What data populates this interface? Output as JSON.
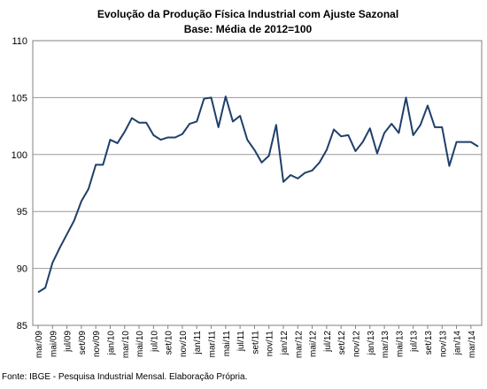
{
  "chart_data": {
    "type": "line",
    "title": "Evolução da Produção Física Industrial com Ajuste Sazonal",
    "subtitle": "Base: Média de 2012=100",
    "ylim": [
      85,
      110
    ],
    "yticks": [
      "85",
      "90",
      "95",
      "100",
      "105",
      "110"
    ],
    "xticks": [
      "mar/09",
      "mai/09",
      "jul/09",
      "set/09",
      "nov/09",
      "jan/10",
      "mar/10",
      "mai/10",
      "jul/10",
      "set/10",
      "nov/10",
      "jan/11",
      "mar/11",
      "mai/11",
      "jul/11",
      "set/11",
      "nov/11",
      "jan/12",
      "mar/12",
      "mai/12",
      "jul/12",
      "set/12",
      "nov/12",
      "jan/13",
      "mar/13",
      "mai/13",
      "jul/13",
      "set/13",
      "nov/13",
      "jan/14",
      "mar/14"
    ],
    "grid": "horizontal",
    "legend": "none",
    "line_color": "#1f3f6a",
    "x": [
      "mar/09",
      "abr/09",
      "mai/09",
      "jun/09",
      "jul/09",
      "ago/09",
      "set/09",
      "out/09",
      "nov/09",
      "dez/09",
      "jan/10",
      "fev/10",
      "mar/10",
      "abr/10",
      "mai/10",
      "jun/10",
      "jul/10",
      "ago/10",
      "set/10",
      "out/10",
      "nov/10",
      "dez/10",
      "jan/11",
      "fev/11",
      "mar/11",
      "abr/11",
      "mai/11",
      "jun/11",
      "jul/11",
      "ago/11",
      "set/11",
      "out/11",
      "nov/11",
      "dez/11",
      "jan/12",
      "fev/12",
      "mar/12",
      "abr/12",
      "mai/12",
      "jun/12",
      "jul/12",
      "ago/12",
      "set/12",
      "out/12",
      "nov/12",
      "dez/12",
      "jan/13",
      "fev/13",
      "mar/13",
      "abr/13",
      "mai/13",
      "jun/13",
      "jul/13",
      "ago/13",
      "set/13",
      "out/13",
      "nov/13",
      "dez/13",
      "jan/14",
      "fev/14",
      "mar/14",
      "abr/14"
    ],
    "values": [
      87.9,
      88.3,
      90.5,
      91.8,
      93.0,
      94.2,
      95.9,
      97.0,
      99.1,
      99.1,
      101.3,
      101.0,
      102.0,
      103.2,
      102.8,
      102.8,
      101.7,
      101.3,
      101.5,
      101.5,
      101.8,
      102.7,
      102.9,
      104.9,
      105.0,
      102.4,
      105.1,
      102.9,
      103.4,
      101.3,
      100.4,
      99.3,
      99.9,
      102.6,
      97.6,
      98.2,
      97.9,
      98.4,
      98.6,
      99.3,
      100.4,
      102.2,
      101.6,
      101.7,
      100.3,
      101.1,
      102.3,
      100.1,
      101.9,
      102.7,
      101.9,
      105.0,
      101.7,
      102.6,
      104.3,
      102.4,
      102.4,
      99.0,
      101.1,
      101.1,
      101.1,
      100.7
    ]
  },
  "source": "Fonte: IBGE - Pesquisa Industrial Mensal. Elaboração Própria."
}
